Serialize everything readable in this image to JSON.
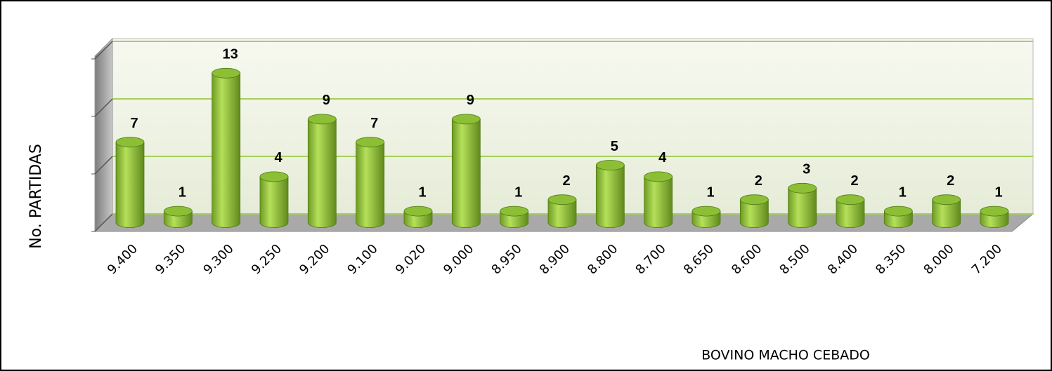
{
  "chart_data": {
    "type": "bar",
    "title_y": "No. PARTIDAS",
    "title_x": "BOVINO MACHO CEBADO",
    "categories": [
      "9.400",
      "9.350",
      "9.300",
      "9.250",
      "9.200",
      "9.100",
      "9.020",
      "9.000",
      "8.950",
      "8.900",
      "8.800",
      "8.700",
      "8.650",
      "8.600",
      "8.500",
      "8.400",
      "8.350",
      "8.000",
      "7.200"
    ],
    "values": [
      7,
      1,
      13,
      4,
      9,
      7,
      1,
      9,
      1,
      2,
      5,
      4,
      1,
      2,
      3,
      2,
      1,
      2,
      1
    ],
    "color": "#8cbf35",
    "ylim": [
      0,
      15
    ],
    "yticks": [
      0,
      5,
      10,
      15
    ],
    "grid": true
  }
}
